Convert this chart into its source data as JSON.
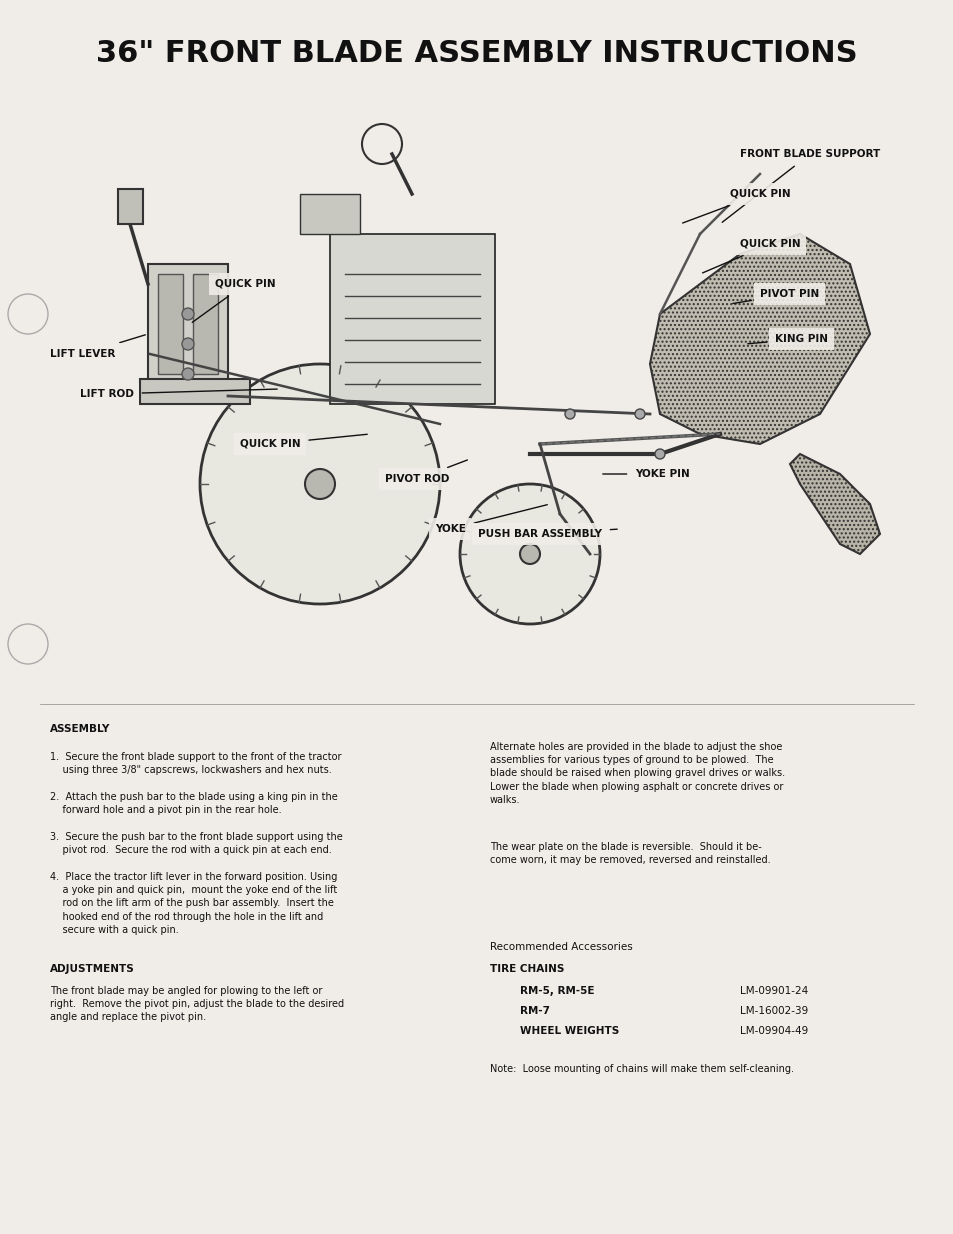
{
  "title": "36\" FRONT BLADE ASSEMBLY INSTRUCTIONS",
  "title_fontsize": 22,
  "title_fontweight": "bold",
  "title_fontfamily": "sans-serif",
  "bg_color": "#f5f5f0",
  "text_color": "#111111",
  "page_width": 9.54,
  "page_height": 12.34,
  "assembly_header": "ASSEMBLY",
  "assembly_steps": [
    "1.  Secure the front blade support to the front of the tractor\n    using three 3/8\" capscrews, lockwashers and hex nuts.",
    "2.  Attach the push bar to the blade using a king pin in the\n    forward hole and a pivot pin in the rear hole.",
    "3.  Secure the push bar to the front blade support using the\n    pivot rod.  Secure the rod with a quick pin at each end.",
    "4.  Place the tractor lift lever in the forward position. Using\n    a yoke pin and quick pin,  mount the yoke end of the lift\n    rod on the lift arm of the push bar assembly.  Insert the\n    hooked end of the rod through the hole in the lift and\n    secure with a quick pin."
  ],
  "adjustments_header": "ADJUSTMENTS",
  "adjustments_text": "The front blade may be angled for plowing to the left or\nright.  Remove the pivot pin, adjust the blade to the desired\nangle and replace the pivot pin.",
  "right_col_para1": "Alternate holes are provided in the blade to adjust the shoe\nassemblies for various types of ground to be plowed.  The\nblade should be raised when plowing gravel drives or walks.\nLower the blade when plowing asphalt or concrete drives or\nwalks.",
  "right_col_para2": "The wear plate on the blade is reversible.  Should it be-\ncome worn, it may be removed, reversed and reinstalled.",
  "accessories_header": "Recommended Accessories",
  "tire_chains_header": "TIRE CHAINS",
  "tire_chains_data": [
    [
      "RM-5, RM-5E",
      "LM-09901-24"
    ],
    [
      "RM-7",
      "LM-16002-39"
    ],
    [
      "WHEEL WEIGHTS",
      "LM-09904-49"
    ]
  ],
  "note_text": "Note:  Loose mounting of chains will make them self-cleaning.",
  "diagram_labels": [
    "FRONT BLADE SUPPORT",
    "QUICK PIN",
    "QUICK PIN",
    "PIVOT PIN",
    "KING PIN",
    "QUICK PIN",
    "LIFT LEVER",
    "LIFT ROD",
    "QUICK PIN",
    "PIVOT ROD",
    "YOKE",
    "PUSH BAR ASSEMBLY",
    "YOKE PIN"
  ]
}
